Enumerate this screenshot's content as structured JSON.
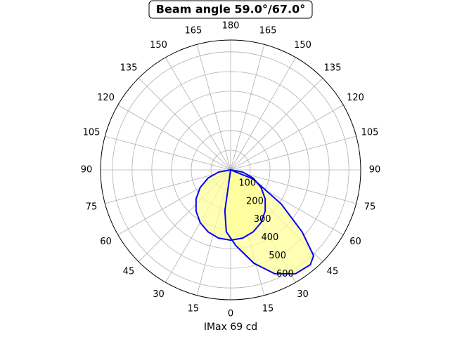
{
  "chart_data": {
    "type": "polar",
    "title": "Beam angle 59.0°/67.0°",
    "xlabel": "IMax 69 cd",
    "rlim": [
      0,
      660
    ],
    "rticks": [
      100,
      200,
      300,
      400,
      500,
      600
    ],
    "xticks": [
      0,
      15,
      30,
      45,
      60,
      75,
      90,
      105,
      120,
      135,
      150,
      165,
      180,
      {
        "value": -165,
        "label": "165"
      },
      {
        "value": -150,
        "label": "150"
      },
      {
        "value": -135,
        "label": "135"
      },
      {
        "value": -120,
        "label": "120"
      },
      {
        "value": -105,
        "label": "105"
      },
      {
        "value": -90,
        "label": "90"
      },
      {
        "value": -75,
        "label": "75"
      },
      {
        "value": -60,
        "label": "60"
      },
      {
        "value": -45,
        "label": "45"
      },
      {
        "value": -30,
        "label": "30"
      },
      {
        "value": -15,
        "label": "15"
      }
    ],
    "grid": true,
    "series": [
      {
        "color": "#0000ff",
        "fill": "#ffff99",
        "theta": [
          -90,
          -80,
          -70,
          -60,
          -50,
          -40,
          -30,
          -20,
          -10,
          0,
          10,
          20,
          30,
          40,
          50,
          60,
          70,
          80,
          90
        ],
        "values": [
          0,
          62,
          122,
          178,
          229,
          273,
          309,
          335,
          352,
          357,
          352,
          335,
          309,
          273,
          229,
          178,
          122,
          62,
          0
        ]
      },
      {
        "color": "#0000ff",
        "fill": "#ffff99",
        "theta": [
          -10,
          -8,
          -4,
          4,
          14,
          23,
          32,
          40,
          44,
          49,
          56,
          68,
          75
        ],
        "values": [
          0,
          209,
          315,
          386,
          489,
          573,
          622,
          629,
          606,
          481,
          309,
          123,
          0
        ]
      }
    ]
  }
}
